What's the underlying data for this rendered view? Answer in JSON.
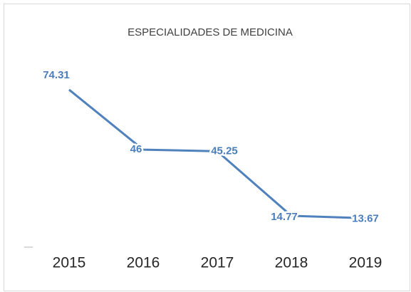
{
  "chart_data": {
    "type": "line",
    "title": "ESPECIALIDADES DE MEDICINA",
    "categories": [
      "2015",
      "2016",
      "2017",
      "2018",
      "2019"
    ],
    "values": [
      74.31,
      46,
      45.25,
      14.77,
      13.67
    ],
    "color": "#4f81bd",
    "label_color": "#4a7ebb",
    "ylim": [
      0,
      80
    ]
  }
}
